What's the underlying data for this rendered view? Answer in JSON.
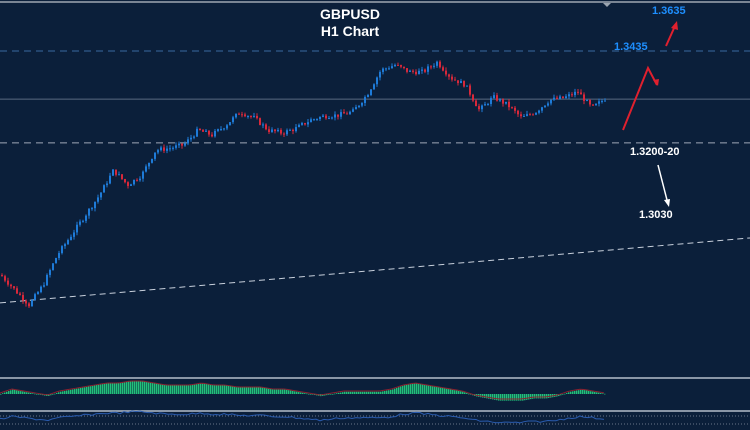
{
  "header": {
    "symbol": "GBPUSD",
    "timeframe": "H1 Chart"
  },
  "colors": {
    "background": "#0b1f3a",
    "bull": "#1e7bd8",
    "bear": "#d8283a",
    "target_label": "#1e8fff",
    "support_label": "#ffffff",
    "arrow_up": "#e0202e",
    "arrow_down": "#ffffff",
    "macd_hist": "#22c07a",
    "macd_signal": "#8a2030",
    "rsi": "#2a5cb0"
  },
  "annotations": {
    "target_2": "1.3635",
    "target_1": "1.3435",
    "support_1": "1.3200-20",
    "support_2": "1.3030"
  },
  "chart_data": {
    "type": "candlestick",
    "title": "GBPUSD H1 Chart",
    "price_path": [
      1.2886,
      1.2849,
      1.2813,
      1.2862,
      1.2935,
      1.2984,
      1.3033,
      1.3082,
      1.3143,
      1.3107,
      1.3131,
      1.3192,
      1.3197,
      1.3205,
      1.3241,
      1.3229,
      1.3254,
      1.3286,
      1.3271,
      1.3241,
      1.3234,
      1.3246,
      1.3266,
      1.3276,
      1.3278,
      1.3286,
      1.3327,
      1.3388,
      1.3401,
      1.3384,
      1.3384,
      1.3408,
      1.3369,
      1.3352,
      1.329,
      1.3322,
      1.3303,
      1.3271,
      1.3286,
      1.3315,
      1.332,
      1.3335,
      1.3295,
      1.332
    ],
    "horizontal_levels": [
      {
        "price": 1.3435,
        "style": "dashed",
        "color": "#3a6aa0"
      },
      {
        "price": 1.3317,
        "style": "solid",
        "color": "#5a6a80"
      },
      {
        "price": 1.321,
        "style": "dashed",
        "color": "#a0a8b8"
      }
    ],
    "trendline": {
      "start_price": 1.2818,
      "end_price": 1.2977,
      "style": "dashed"
    },
    "indicators": [
      "MACD histogram",
      "RSI"
    ],
    "grid": false
  }
}
